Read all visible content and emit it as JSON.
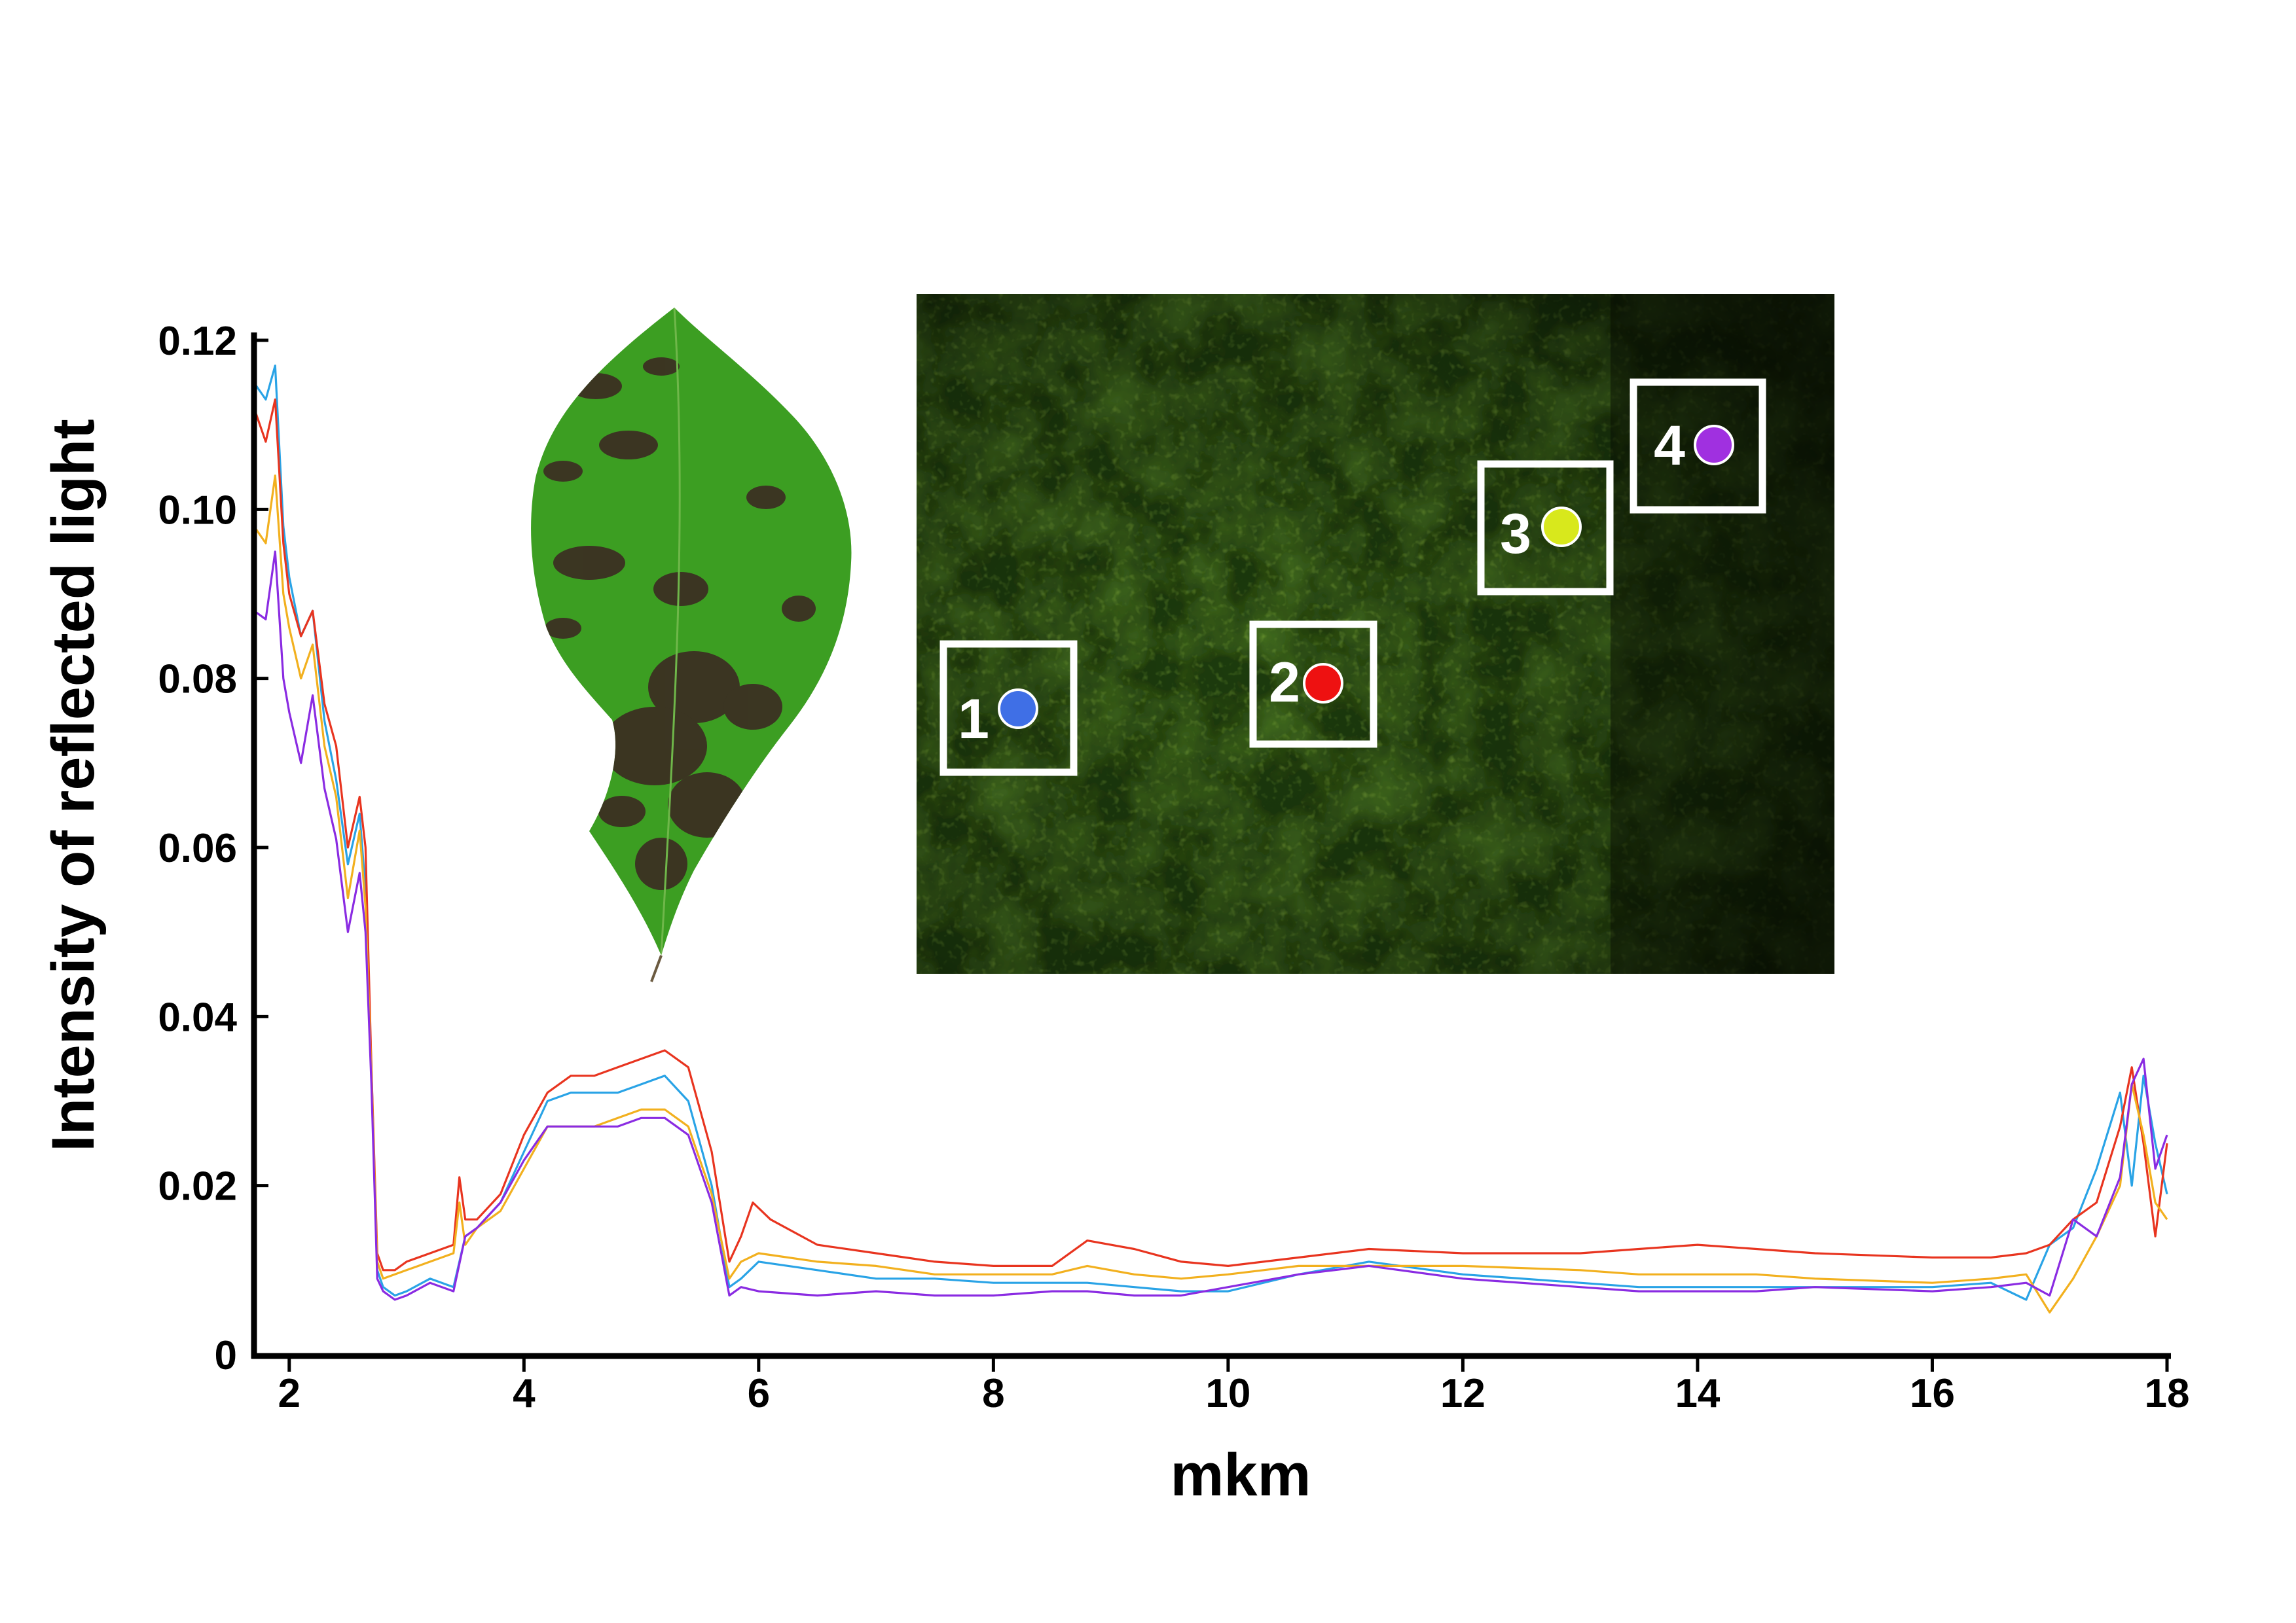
{
  "chart_data": {
    "type": "line",
    "xlabel": "mkm",
    "ylabel": "Intensity of reflected light",
    "xlim": [
      1.7,
      18
    ],
    "ylim": [
      0,
      0.12
    ],
    "x_ticks": [
      2,
      4,
      6,
      8,
      10,
      12,
      14,
      16,
      18
    ],
    "x_tick_labels": [
      "2",
      "4",
      "6",
      "8",
      "10",
      "12",
      "14",
      "16",
      "18"
    ],
    "y_ticks": [
      0,
      0.02,
      0.04,
      0.06,
      0.08,
      0.1,
      0.12
    ],
    "y_tick_labels": [
      "0",
      "0.02",
      "0.04",
      "0.06",
      "0.08",
      "0.10",
      "0.12"
    ],
    "grid": false,
    "legend": "inset image markers",
    "series": [
      {
        "color": "#29a3e6",
        "x": [
          1.7,
          1.8,
          1.88,
          1.95,
          2.0,
          2.1,
          2.2,
          2.3,
          2.4,
          2.5,
          2.6,
          2.65,
          2.7,
          2.75,
          2.8,
          2.9,
          3.0,
          3.2,
          3.4,
          3.5,
          3.6,
          3.8,
          4.0,
          4.2,
          4.4,
          4.6,
          4.8,
          5.0,
          5.2,
          5.4,
          5.6,
          5.75,
          5.85,
          6.0,
          6.5,
          7.0,
          7.5,
          8.0,
          8.5,
          8.8,
          9.2,
          9.6,
          10.0,
          10.6,
          11.2,
          12.0,
          13.0,
          13.5,
          14.0,
          14.5,
          15.0,
          16.0,
          16.5,
          16.8,
          17.0,
          17.2,
          17.4,
          17.6,
          17.7,
          17.8,
          17.9,
          18.0
        ],
        "y": [
          0.115,
          0.113,
          0.117,
          0.098,
          0.092,
          0.085,
          0.088,
          0.075,
          0.068,
          0.058,
          0.064,
          0.055,
          0.034,
          0.01,
          0.008,
          0.007,
          0.0075,
          0.009,
          0.008,
          0.014,
          0.015,
          0.018,
          0.024,
          0.03,
          0.031,
          0.031,
          0.031,
          0.032,
          0.033,
          0.03,
          0.02,
          0.008,
          0.009,
          0.011,
          0.01,
          0.009,
          0.009,
          0.0085,
          0.0085,
          0.0085,
          0.008,
          0.0075,
          0.0075,
          0.0095,
          0.011,
          0.0095,
          0.0085,
          0.008,
          0.008,
          0.008,
          0.008,
          0.008,
          0.0085,
          0.0065,
          0.013,
          0.015,
          0.022,
          0.031,
          0.02,
          0.033,
          0.025,
          0.019
        ]
      },
      {
        "color": "#e8341f",
        "x": [
          1.7,
          1.8,
          1.88,
          1.95,
          2.0,
          2.1,
          2.2,
          2.3,
          2.4,
          2.5,
          2.6,
          2.65,
          2.7,
          2.75,
          2.8,
          2.9,
          3.0,
          3.2,
          3.4,
          3.45,
          3.5,
          3.6,
          3.8,
          4.0,
          4.2,
          4.4,
          4.6,
          4.8,
          5.0,
          5.2,
          5.4,
          5.6,
          5.75,
          5.85,
          5.95,
          6.1,
          6.5,
          7.0,
          7.5,
          8.0,
          8.5,
          8.8,
          9.2,
          9.6,
          10.0,
          10.6,
          11.2,
          12.0,
          13.0,
          13.5,
          14.0,
          14.5,
          15.0,
          16.0,
          16.5,
          16.8,
          17.0,
          17.2,
          17.4,
          17.6,
          17.7,
          17.8,
          17.9,
          18.0
        ],
        "y": [
          0.112,
          0.108,
          0.113,
          0.096,
          0.09,
          0.085,
          0.088,
          0.077,
          0.072,
          0.06,
          0.066,
          0.06,
          0.034,
          0.012,
          0.01,
          0.01,
          0.011,
          0.012,
          0.013,
          0.021,
          0.016,
          0.016,
          0.019,
          0.026,
          0.031,
          0.033,
          0.033,
          0.034,
          0.035,
          0.036,
          0.034,
          0.024,
          0.011,
          0.014,
          0.018,
          0.016,
          0.013,
          0.012,
          0.011,
          0.0105,
          0.0105,
          0.0135,
          0.0125,
          0.011,
          0.0105,
          0.0115,
          0.0125,
          0.012,
          0.012,
          0.0125,
          0.013,
          0.0125,
          0.012,
          0.0115,
          0.0115,
          0.012,
          0.013,
          0.016,
          0.018,
          0.027,
          0.034,
          0.025,
          0.014,
          0.025
        ]
      },
      {
        "color": "#f2b01e",
        "x": [
          1.7,
          1.8,
          1.88,
          1.95,
          2.0,
          2.1,
          2.2,
          2.3,
          2.4,
          2.5,
          2.6,
          2.65,
          2.7,
          2.75,
          2.8,
          2.9,
          3.0,
          3.2,
          3.4,
          3.45,
          3.5,
          3.6,
          3.8,
          4.0,
          4.2,
          4.4,
          4.6,
          4.8,
          5.0,
          5.2,
          5.4,
          5.6,
          5.75,
          5.85,
          6.0,
          6.5,
          7.0,
          7.5,
          8.0,
          8.5,
          8.8,
          9.2,
          9.6,
          10.0,
          10.6,
          11.2,
          12.0,
          13.0,
          13.5,
          14.0,
          14.5,
          15.0,
          16.0,
          16.5,
          16.8,
          17.0,
          17.2,
          17.4,
          17.6,
          17.7,
          17.8,
          17.9,
          18.0
        ],
        "y": [
          0.098,
          0.096,
          0.104,
          0.09,
          0.086,
          0.08,
          0.084,
          0.072,
          0.066,
          0.054,
          0.062,
          0.053,
          0.033,
          0.011,
          0.009,
          0.0095,
          0.01,
          0.011,
          0.012,
          0.018,
          0.013,
          0.015,
          0.017,
          0.022,
          0.027,
          0.027,
          0.027,
          0.028,
          0.029,
          0.029,
          0.027,
          0.019,
          0.009,
          0.011,
          0.012,
          0.011,
          0.0105,
          0.0095,
          0.0095,
          0.0095,
          0.0105,
          0.0095,
          0.009,
          0.0095,
          0.0105,
          0.0105,
          0.0105,
          0.01,
          0.0095,
          0.0095,
          0.0095,
          0.009,
          0.0085,
          0.009,
          0.0095,
          0.005,
          0.009,
          0.014,
          0.02,
          0.032,
          0.026,
          0.018,
          0.016
        ]
      },
      {
        "color": "#8a2be2",
        "x": [
          1.7,
          1.8,
          1.88,
          1.95,
          2.0,
          2.1,
          2.2,
          2.3,
          2.4,
          2.5,
          2.6,
          2.65,
          2.7,
          2.75,
          2.8,
          2.9,
          3.0,
          3.2,
          3.4,
          3.5,
          3.6,
          3.8,
          4.0,
          4.2,
          4.4,
          4.6,
          4.8,
          5.0,
          5.2,
          5.4,
          5.6,
          5.75,
          5.85,
          6.0,
          6.5,
          7.0,
          7.5,
          8.0,
          8.5,
          8.8,
          9.2,
          9.6,
          10.0,
          10.6,
          11.2,
          12.0,
          13.0,
          13.5,
          14.0,
          14.5,
          15.0,
          16.0,
          16.5,
          16.8,
          17.0,
          17.2,
          17.4,
          17.6,
          17.7,
          17.8,
          17.9,
          18.0
        ],
        "y": [
          0.088,
          0.087,
          0.095,
          0.08,
          0.076,
          0.07,
          0.078,
          0.067,
          0.061,
          0.05,
          0.057,
          0.05,
          0.032,
          0.009,
          0.0075,
          0.0065,
          0.007,
          0.0085,
          0.0075,
          0.014,
          0.015,
          0.018,
          0.023,
          0.027,
          0.027,
          0.027,
          0.027,
          0.028,
          0.028,
          0.026,
          0.018,
          0.007,
          0.008,
          0.0075,
          0.007,
          0.0075,
          0.007,
          0.007,
          0.0075,
          0.0075,
          0.007,
          0.007,
          0.008,
          0.0095,
          0.0105,
          0.009,
          0.008,
          0.0075,
          0.0075,
          0.0075,
          0.008,
          0.0075,
          0.008,
          0.0085,
          0.007,
          0.016,
          0.014,
          0.021,
          0.032,
          0.035,
          0.022,
          0.026
        ]
      }
    ]
  },
  "inset": {
    "markers": [
      {
        "label": "1",
        "color": "#3f6fe6"
      },
      {
        "label": "2",
        "color": "#ee1111"
      },
      {
        "label": "3",
        "color": "#d8e81c"
      },
      {
        "label": "4",
        "color": "#a030e0"
      }
    ]
  }
}
